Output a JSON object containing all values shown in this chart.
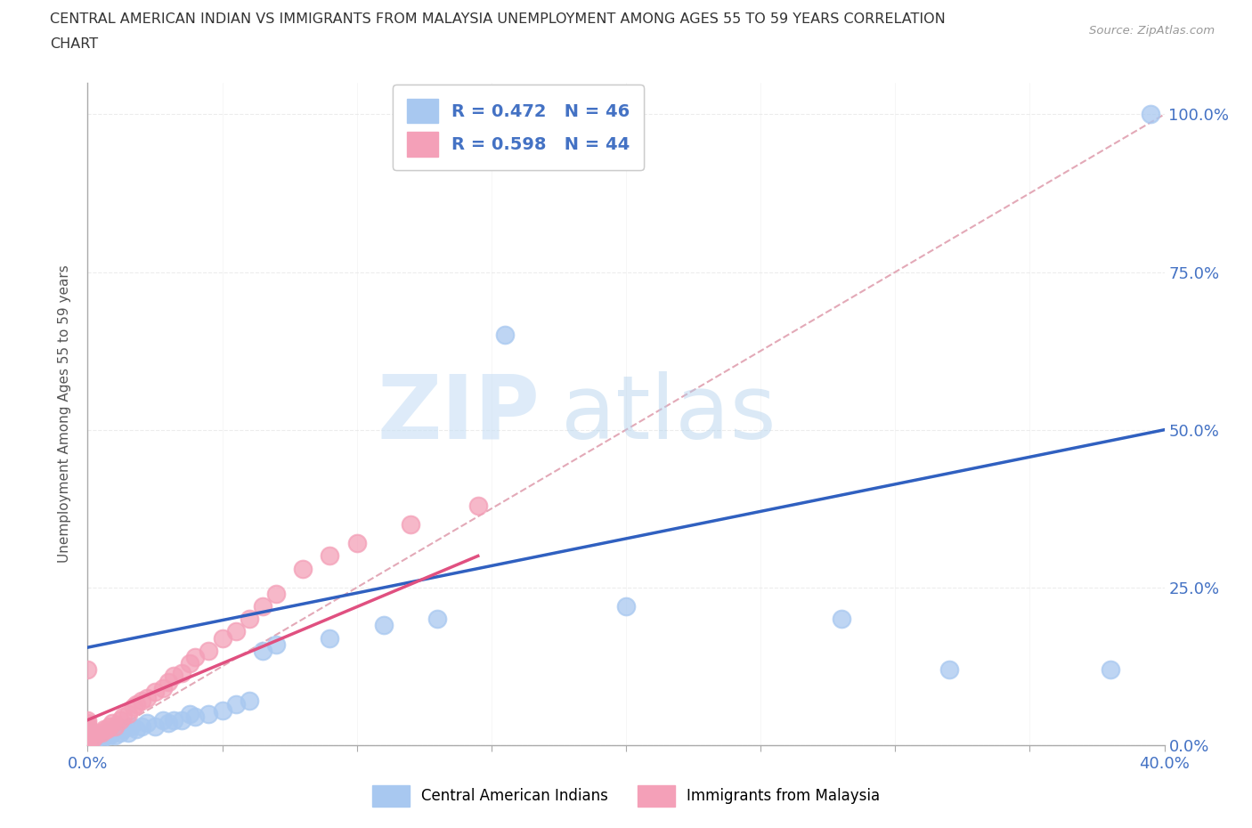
{
  "title_line1": "CENTRAL AMERICAN INDIAN VS IMMIGRANTS FROM MALAYSIA UNEMPLOYMENT AMONG AGES 55 TO 59 YEARS CORRELATION",
  "title_line2": "CHART",
  "source_text": "Source: ZipAtlas.com",
  "ylabel": "Unemployment Among Ages 55 to 59 years",
  "xlim": [
    0,
    0.4
  ],
  "ylim": [
    0,
    1.05
  ],
  "legend1_label": "R = 0.472   N = 46",
  "legend2_label": "R = 0.598   N = 44",
  "legend_bottom_label1": "Central American Indians",
  "legend_bottom_label2": "Immigrants from Malaysia",
  "blue_color": "#a8c8f0",
  "pink_color": "#f4a0b8",
  "blue_line_color": "#3060c0",
  "pink_line_color": "#e05080",
  "ref_line_color": "#e0a0b0",
  "watermark_zip": "ZIP",
  "watermark_atlas": "atlas",
  "background_color": "#ffffff",
  "grid_color": "#e8e8e8",
  "blue_scatter_x": [
    0.0,
    0.0,
    0.0,
    0.0,
    0.0,
    0.0,
    0.0,
    0.002,
    0.003,
    0.004,
    0.005,
    0.006,
    0.007,
    0.008,
    0.009,
    0.01,
    0.01,
    0.012,
    0.013,
    0.015,
    0.016,
    0.018,
    0.02,
    0.022,
    0.025,
    0.028,
    0.03,
    0.032,
    0.035,
    0.038,
    0.04,
    0.045,
    0.05,
    0.055,
    0.06,
    0.065,
    0.07,
    0.09,
    0.11,
    0.13,
    0.155,
    0.2,
    0.28,
    0.32,
    0.38,
    0.395
  ],
  "blue_scatter_y": [
    0.0,
    0.005,
    0.01,
    0.015,
    0.02,
    0.025,
    0.03,
    0.005,
    0.01,
    0.015,
    0.01,
    0.015,
    0.02,
    0.015,
    0.02,
    0.015,
    0.025,
    0.02,
    0.025,
    0.02,
    0.03,
    0.025,
    0.03,
    0.035,
    0.03,
    0.04,
    0.035,
    0.04,
    0.04,
    0.05,
    0.045,
    0.05,
    0.055,
    0.065,
    0.07,
    0.15,
    0.16,
    0.17,
    0.19,
    0.2,
    0.65,
    0.22,
    0.2,
    0.12,
    0.12,
    1.0
  ],
  "pink_scatter_x": [
    0.0,
    0.0,
    0.0,
    0.0,
    0.0,
    0.0,
    0.0,
    0.0,
    0.0,
    0.0,
    0.002,
    0.003,
    0.004,
    0.005,
    0.006,
    0.007,
    0.008,
    0.009,
    0.01,
    0.012,
    0.013,
    0.015,
    0.017,
    0.018,
    0.02,
    0.022,
    0.025,
    0.028,
    0.03,
    0.032,
    0.035,
    0.038,
    0.04,
    0.045,
    0.05,
    0.055,
    0.06,
    0.065,
    0.07,
    0.08,
    0.09,
    0.1,
    0.12,
    0.145
  ],
  "pink_scatter_y": [
    0.0,
    0.005,
    0.01,
    0.015,
    0.02,
    0.025,
    0.03,
    0.035,
    0.04,
    0.12,
    0.01,
    0.015,
    0.02,
    0.02,
    0.025,
    0.025,
    0.03,
    0.035,
    0.03,
    0.04,
    0.045,
    0.05,
    0.06,
    0.065,
    0.07,
    0.075,
    0.085,
    0.09,
    0.1,
    0.11,
    0.115,
    0.13,
    0.14,
    0.15,
    0.17,
    0.18,
    0.2,
    0.22,
    0.24,
    0.28,
    0.3,
    0.32,
    0.35,
    0.38
  ],
  "blue_trend_x0": 0.0,
  "blue_trend_y0": 0.155,
  "blue_trend_x1": 0.4,
  "blue_trend_y1": 0.5,
  "pink_trend_x0": 0.0,
  "pink_trend_y0": 0.04,
  "pink_trend_x1": 0.145,
  "pink_trend_y1": 0.3
}
